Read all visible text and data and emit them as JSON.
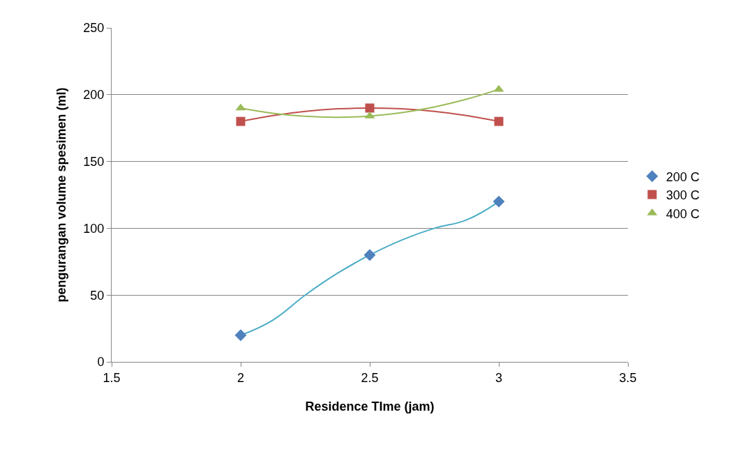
{
  "chart_data": {
    "type": "scatter",
    "xlabel": "Residence TIme (jam)",
    "ylabel": "pengurangan volume spesimen (ml)",
    "xlim": [
      1.5,
      3.5
    ],
    "xticks": [
      1.5,
      2,
      2.5,
      3,
      3.5
    ],
    "ylim": [
      0,
      250
    ],
    "yticks": [
      0,
      50,
      100,
      150,
      200,
      250
    ],
    "grid": "y",
    "legend": "right",
    "series": [
      {
        "name": "200 C",
        "marker": "diamond",
        "color": "#4f81bd",
        "x": [
          2,
          2.5,
          3
        ],
        "values": [
          20,
          80,
          120
        ]
      },
      {
        "name": "300 C",
        "marker": "square",
        "color": "#c0504d",
        "x": [
          2,
          2.5,
          3
        ],
        "values": [
          180,
          190,
          180
        ]
      },
      {
        "name": "400 C",
        "marker": "triangle",
        "color": "#9bbb59",
        "x": [
          2,
          2.5,
          3
        ],
        "values": [
          190,
          184,
          204
        ]
      },
      {
        "type": "line",
        "marker": "none",
        "color": "#4bacc6",
        "x": [
          2,
          2.125,
          2.25,
          2.375,
          2.5,
          2.625,
          2.75,
          2.875,
          3
        ],
        "values": [
          20,
          31.3,
          50,
          66.3,
          80,
          91.3,
          100,
          106.3,
          120
        ]
      },
      {
        "type": "line",
        "marker": "none",
        "color": "#c0504d",
        "x": [
          2,
          2.125,
          2.25,
          2.375,
          2.5,
          2.625,
          2.75,
          2.875,
          3
        ],
        "values": [
          180,
          184.4,
          187.5,
          189.4,
          190,
          189.4,
          187.5,
          184.4,
          180
        ]
      },
      {
        "type": "line",
        "marker": "none",
        "color": "#9bbb59",
        "x": [
          2,
          2.125,
          2.25,
          2.375,
          2.5,
          2.625,
          2.75,
          2.875,
          3
        ],
        "values": [
          190,
          186.1,
          183.8,
          183.1,
          184,
          186.6,
          190.8,
          196.6,
          204
        ]
      }
    ]
  }
}
